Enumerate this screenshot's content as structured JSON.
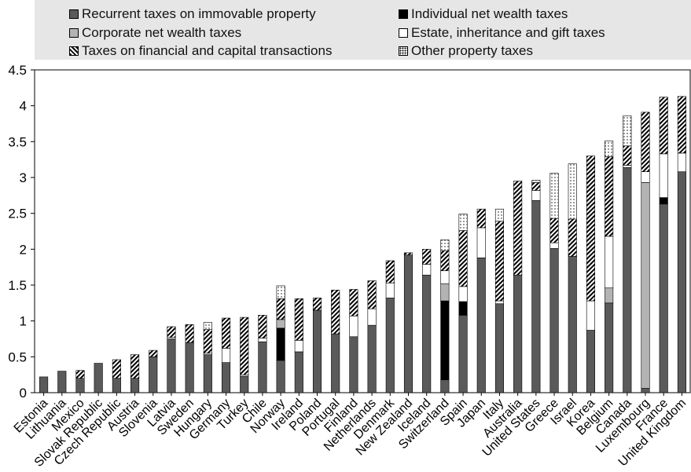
{
  "chart_data": {
    "type": "bar",
    "stacked": true,
    "ylim": [
      0,
      4.5
    ],
    "yticks": [
      "0",
      "0.5",
      "1",
      "1.5",
      "2",
      "2.5",
      "3",
      "3.5",
      "4",
      "4.5"
    ],
    "grid": false,
    "legend_position": "top",
    "categories": [
      "Estonia",
      "Lithuania",
      "Mexico",
      "Slovak Republic",
      "Czech Republic",
      "Austria",
      "Slovenia",
      "Latvia",
      "Sweden",
      "Hungary",
      "Germany",
      "Turkey",
      "Chile",
      "Norway",
      "Ireland",
      "Poland",
      "Portugal",
      "Finland",
      "Netherlands",
      "Denmark",
      "New Zealand",
      "Iceland",
      "Switzerland",
      "Spain",
      "Japan",
      "Italy",
      "Australia",
      "United States",
      "Greece",
      "Israel",
      "Korea",
      "Belgium",
      "Canada",
      "Luxembourg",
      "France",
      "United Kingdom"
    ],
    "series": [
      {
        "name": "Recurrent taxes on immovable property",
        "color": "#5a5a5a",
        "pattern": "solid-gray",
        "values": [
          0.22,
          0.3,
          0.2,
          0.41,
          0.2,
          0.2,
          0.5,
          0.75,
          0.7,
          0.53,
          0.42,
          0.23,
          0.71,
          0.45,
          0.57,
          1.15,
          0.82,
          0.78,
          0.94,
          1.32,
          1.92,
          1.64,
          0.18,
          1.08,
          1.88,
          1.24,
          1.64,
          2.68,
          2.01,
          1.9,
          0.87,
          1.25,
          3.14,
          0.06,
          2.63,
          3.08
        ]
      },
      {
        "name": "Individual net wealth taxes",
        "color": "#000000",
        "pattern": "solid-black",
        "values": [
          0,
          0,
          0,
          0,
          0,
          0,
          0,
          0,
          0,
          0,
          0,
          0,
          0,
          0.45,
          0,
          0,
          0,
          0,
          0,
          0,
          0,
          0,
          1.1,
          0.19,
          0,
          0,
          0,
          0,
          0,
          0,
          0,
          0,
          0,
          0,
          0.09,
          0
        ]
      },
      {
        "name": "Corporate net wealth taxes",
        "color": "#b3b3b3",
        "pattern": "solid-lightgray",
        "values": [
          0,
          0,
          0,
          0,
          0,
          0,
          0,
          0,
          0,
          0,
          0,
          0,
          0,
          0.12,
          0,
          0,
          0,
          0,
          0,
          0,
          0,
          0,
          0.24,
          0,
          0,
          0,
          0,
          0,
          0,
          0,
          0,
          0.21,
          0,
          2.87,
          0,
          0
        ]
      },
      {
        "name": "Estate, inheritance and gift taxes",
        "color": "#ffffff",
        "pattern": "white",
        "values": [
          0,
          0,
          0,
          0,
          0,
          0,
          0,
          0.02,
          0,
          0.02,
          0.2,
          0.02,
          0.05,
          0,
          0.16,
          0,
          0,
          0.29,
          0.23,
          0.21,
          0,
          0.15,
          0.18,
          0.21,
          0.42,
          0.04,
          0,
          0.14,
          0.08,
          0,
          0.41,
          0.72,
          0.03,
          0.15,
          0.61,
          0.26
        ]
      },
      {
        "name": "Taxes on financial and capital transactions",
        "color": "#000000",
        "pattern": "hatch",
        "values": [
          0,
          0,
          0.11,
          0,
          0.26,
          0.33,
          0.09,
          0.15,
          0.25,
          0.33,
          0.42,
          0.8,
          0.32,
          0.29,
          0.58,
          0.17,
          0.61,
          0.37,
          0.39,
          0.31,
          0.03,
          0.21,
          0.28,
          0.78,
          0.26,
          1.11,
          1.31,
          0.11,
          0.34,
          0.52,
          2.02,
          1.11,
          0.27,
          0.83,
          0.79,
          0.79
        ]
      },
      {
        "name": "Other property taxes",
        "color": "#ffffff",
        "pattern": "dots",
        "values": [
          0,
          0,
          0,
          0,
          0,
          0,
          0,
          0,
          0,
          0.1,
          0,
          0,
          0,
          0.18,
          0,
          0,
          0,
          0,
          0,
          0,
          0,
          0,
          0.15,
          0.23,
          0,
          0.17,
          0,
          0.03,
          0.63,
          0.77,
          0,
          0.22,
          0.42,
          0,
          0,
          0
        ]
      }
    ]
  }
}
